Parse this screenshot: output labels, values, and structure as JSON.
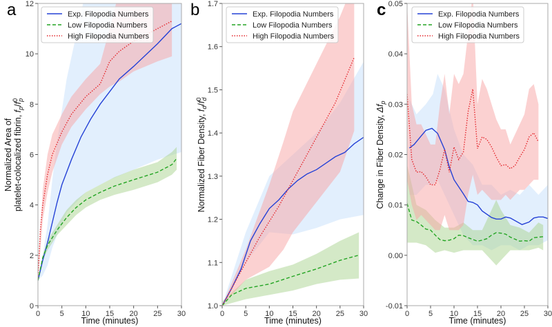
{
  "colors": {
    "exp": "#2441d6",
    "low": "#22a422",
    "high": "#e4262b",
    "exp_band": "#cfe4fb",
    "low_band": "#a9d48f",
    "high_band": "#f7a4a4"
  },
  "legend": [
    "Exp. Filopodia Numbers",
    "Low Filopodia Numbers",
    "High Filopodia Numbers"
  ],
  "chart_data": [
    {
      "type": "line",
      "panel_label": "a",
      "xlabel": "Time (minutes)",
      "ylabel_line1": "Normalized Area of",
      "ylabel_line2": "platelet-colocalized fibrin, ",
      "ylabel_math": [
        "f",
        "p",
        "/",
        "f",
        "p",
        "0"
      ],
      "xlim": [
        0,
        30
      ],
      "ylim": [
        0,
        12
      ],
      "xticks": [
        0,
        5,
        10,
        15,
        20,
        25,
        30
      ],
      "yticks": [
        0,
        2,
        4,
        6,
        8,
        10,
        12
      ],
      "ytick_labels": [
        "0",
        "2",
        "4",
        "6",
        "8",
        "10",
        "12"
      ],
      "legend_position": "top-left",
      "series": [
        {
          "name": "Exp. Filopodia Numbers",
          "key": "exp",
          "style": "solid",
          "x": [
            0,
            1,
            2,
            3,
            4,
            5,
            7,
            9,
            11,
            13,
            15,
            17,
            20,
            25,
            28,
            30
          ],
          "y": [
            1,
            1.8,
            2.5,
            3.3,
            4.1,
            4.8,
            5.8,
            6.7,
            7.4,
            8.0,
            8.5,
            9.0,
            9.5,
            10.4,
            11.0,
            11.2
          ],
          "band": {
            "x": [
              0,
              1,
              2,
              3,
              4,
              6,
              10,
              15,
              20,
              25,
              30
            ],
            "lower": [
              1,
              1.2,
              1.6,
              2.3,
              2.8,
              3.7,
              4.5,
              5.0,
              5.4,
              5.8,
              6.1
            ],
            "upper": [
              1.1,
              2,
              3.2,
              5,
              6.5,
              9,
              12.5,
              14,
              14,
              14,
              14
            ]
          }
        },
        {
          "name": "Low Filopodia Numbers",
          "key": "low",
          "style": "dashed",
          "x": [
            0,
            1,
            2,
            4,
            6,
            8,
            10,
            13,
            16,
            20,
            25,
            28,
            29
          ],
          "y": [
            1,
            1.9,
            2.4,
            3.0,
            3.5,
            3.9,
            4.2,
            4.5,
            4.75,
            5.0,
            5.3,
            5.6,
            5.85
          ],
          "band": {
            "x": [
              0,
              1,
              2,
              4,
              6,
              8,
              10,
              13,
              16,
              20,
              25,
              28,
              29
            ],
            "lower": [
              1,
              1.8,
              2.2,
              2.8,
              3.2,
              3.6,
              3.9,
              4.2,
              4.4,
              4.6,
              4.9,
              5.2,
              5.4
            ],
            "upper": [
              1.1,
              2.0,
              2.6,
              3.2,
              3.8,
              4.2,
              4.5,
              4.8,
              5.1,
              5.4,
              5.7,
              6.1,
              6.3
            ]
          }
        },
        {
          "name": "High Filopodia Numbers",
          "key": "high",
          "style": "dotted",
          "x": [
            0,
            0.5,
            1,
            2,
            3,
            5,
            7,
            10,
            13,
            15,
            17,
            20,
            25,
            28
          ],
          "y": [
            1.1,
            3,
            4,
            5.2,
            6,
            6.9,
            7.6,
            8.3,
            8.8,
            9.7,
            10.1,
            10.5,
            11.0,
            11.3
          ],
          "band": {
            "x": [
              0,
              1,
              2,
              3,
              5,
              7,
              10,
              13,
              15,
              17,
              20,
              25,
              28
            ],
            "lower": [
              1,
              3.4,
              4.5,
              5.3,
              6.4,
              7.1,
              7.8,
              8.4,
              8.7,
              8.9,
              9.3,
              9.7,
              9.9
            ],
            "upper": [
              1.2,
              4.6,
              6,
              6.8,
              7.6,
              8.3,
              9.0,
              9.6,
              11,
              12.5,
              13,
              13,
              13
            ]
          }
        }
      ]
    },
    {
      "type": "line",
      "panel_label": "b",
      "xlabel": "Time (minutes)",
      "ylabel_line1": "",
      "ylabel_line2": "Normalized Fiber Density, ",
      "ylabel_math": [
        "f",
        "d",
        "/",
        "f",
        "d",
        "0"
      ],
      "xlim": [
        0,
        30
      ],
      "ylim": [
        1.0,
        1.7
      ],
      "xticks": [
        0,
        5,
        10,
        15,
        20,
        25,
        30
      ],
      "yticks": [
        1.0,
        1.1,
        1.2,
        1.3,
        1.4,
        1.5,
        1.6,
        1.7
      ],
      "ytick_labels": [
        "1.0",
        "1.1",
        "1.2",
        "1.3",
        "1.4",
        "1.5",
        "1.6",
        "1.7"
      ],
      "legend_position": "top-left",
      "series": [
        {
          "name": "Exp. Filopodia Numbers",
          "key": "exp",
          "style": "solid",
          "x": [
            0,
            2,
            4,
            6,
            8,
            10,
            12,
            14,
            16,
            18,
            20,
            22,
            24,
            26,
            28,
            30
          ],
          "y": [
            1,
            1.04,
            1.085,
            1.15,
            1.19,
            1.225,
            1.245,
            1.27,
            1.29,
            1.305,
            1.315,
            1.33,
            1.345,
            1.355,
            1.375,
            1.39
          ],
          "band": {
            "x": [
              0,
              5,
              10,
              15,
              20,
              25,
              30
            ],
            "lower": [
              1,
              1.1,
              1.17,
              1.165,
              1.18,
              1.2,
              1.21
            ],
            "upper": [
              1,
              1.17,
              1.3,
              1.35,
              1.4,
              1.47,
              1.565
            ]
          }
        },
        {
          "name": "Low Filopodia Numbers",
          "key": "low",
          "style": "dashed",
          "x": [
            0,
            2,
            5,
            10,
            15,
            20,
            25,
            29
          ],
          "y": [
            1,
            1.025,
            1.04,
            1.05,
            1.068,
            1.085,
            1.105,
            1.117
          ],
          "band": {
            "x": [
              0,
              5,
              10,
              15,
              20,
              25,
              29
            ],
            "lower": [
              1,
              1.015,
              1.025,
              1.035,
              1.05,
              1.06,
              1.063
            ],
            "upper": [
              1.01,
              1.06,
              1.08,
              1.095,
              1.12,
              1.15,
              1.17
            ]
          }
        },
        {
          "name": "High Filopodia Numbers",
          "key": "high",
          "style": "dotted",
          "x": [
            0,
            4,
            8,
            12,
            16,
            20,
            24,
            28
          ],
          "y": [
            1,
            1.08,
            1.16,
            1.23,
            1.31,
            1.39,
            1.47,
            1.575
          ],
          "band": {
            "x": [
              0,
              5,
              10,
              13,
              15,
              20,
              25,
              28
            ],
            "lower": [
              1,
              1.06,
              1.09,
              1.13,
              1.17,
              1.24,
              1.31,
              1.405
            ],
            "upper": [
              1,
              1.13,
              1.28,
              1.38,
              1.45,
              1.56,
              1.67,
              1.75
            ]
          }
        }
      ]
    },
    {
      "type": "line",
      "panel_label": "c",
      "xlabel": "Time (minutes)",
      "ylabel_line1": "",
      "ylabel_line2": "Change in Fiber Density, ",
      "ylabel_math": [
        "Δf",
        "p",
        "",
        "",
        "",
        ""
      ],
      "xlim": [
        0,
        30
      ],
      "ylim": [
        -0.01,
        0.05
      ],
      "xticks": [
        0,
        5,
        10,
        15,
        20,
        25,
        30
      ],
      "yticks": [
        -0.01,
        0.0,
        0.01,
        0.02,
        0.03,
        0.04,
        0.05
      ],
      "ytick_labels": [
        "-0.01",
        "0.00",
        "0.01",
        "0.02",
        "0.03",
        "0.04",
        "0.05"
      ],
      "legend_position": "top-left",
      "series": [
        {
          "name": "Exp. Filopodia Numbers",
          "key": "exp",
          "style": "solid",
          "x": [
            0.5,
            1.5,
            3,
            4,
            5.3,
            6.5,
            8,
            9,
            10,
            12,
            13,
            14,
            15,
            16,
            18,
            19,
            20,
            21,
            22,
            24.5,
            26,
            27,
            28,
            29,
            30
          ],
          "y": [
            0.0213,
            0.022,
            0.0237,
            0.0248,
            0.0252,
            0.0242,
            0.021,
            0.0175,
            0.015,
            0.0122,
            0.0107,
            0.0105,
            0.01,
            0.0088,
            0.0075,
            0.0072,
            0.0072,
            0.0076,
            0.0074,
            0.0061,
            0.0066,
            0.0074,
            0.0076,
            0.0076,
            0.0073
          ],
          "band": {
            "x": [
              0.5,
              2,
              4,
              5.5,
              6.5,
              8,
              10,
              12,
              14,
              16,
              18,
              20,
              22,
              24,
              26,
              28,
              30
            ],
            "lower": [
              0.012,
              0.012,
              0.014,
              0.014,
              0.015,
              0.012,
              0.008,
              0.004,
              0.002,
              0.002,
              0.001,
              0.002,
              0.002,
              0.001,
              0.002,
              0.002,
              0.003
            ],
            "upper": [
              0.031,
              0.028,
              0.03,
              0.032,
              0.036,
              0.033,
              0.025,
              0.02,
              0.018,
              0.014,
              0.014,
              0.012,
              0.013,
              0.012,
              0.014,
              0.012,
              0.014
            ]
          }
        },
        {
          "name": "Low Filopodia Numbers",
          "key": "low",
          "style": "dashed",
          "x": [
            0,
            1,
            2,
            3,
            4,
            5,
            6,
            7,
            8,
            9,
            10,
            11,
            12,
            13,
            15,
            16,
            17,
            18,
            19,
            20,
            21,
            22,
            24,
            25,
            26,
            27,
            29
          ],
          "y": [
            0.0103,
            0.007,
            0.0067,
            0.006,
            0.0052,
            0.005,
            0.004,
            0.0031,
            0.0029,
            0.003,
            0.0033,
            0.004,
            0.0039,
            0.0035,
            0.0028,
            0.003,
            0.0033,
            0.004,
            0.0045,
            0.0044,
            0.0042,
            0.0036,
            0.0028,
            0.0029,
            0.0028,
            0.0035,
            0.0037
          ],
          "band": {
            "x": [
              0,
              2,
              4,
              6,
              8,
              10,
              12,
              14,
              16,
              18,
              19,
              20,
              22,
              24,
              26,
              28,
              29
            ],
            "lower": [
              0.0025,
              0.0025,
              0.002,
              0.0005,
              0.001,
              0.0005,
              0.001,
              0.001,
              0.001,
              -0.001,
              -0.002,
              -0.001,
              0.001,
              0.001,
              0.001,
              0.0015,
              0.001
            ],
            "upper": [
              0.018,
              0.01,
              0.009,
              0.007,
              0.0055,
              0.0055,
              0.0065,
              0.005,
              0.005,
              0.009,
              0.011,
              0.009,
              0.006,
              0.0055,
              0.0045,
              0.0065,
              0.006
            ]
          }
        },
        {
          "name": "High Filopodia Numbers",
          "key": "high",
          "style": "dotted",
          "x": [
            0,
            1,
            2,
            3,
            4,
            5,
            6,
            7,
            8,
            9,
            10,
            11,
            12,
            13,
            14,
            15,
            16,
            17,
            18,
            19,
            20,
            21,
            22,
            23,
            24,
            25,
            26,
            27,
            28
          ],
          "y": [
            0.032,
            0.019,
            0.0165,
            0.0166,
            0.0156,
            0.014,
            0.014,
            0.017,
            0.021,
            0.0165,
            0.0215,
            0.019,
            0.0205,
            0.0285,
            0.033,
            0.0212,
            0.0235,
            0.023,
            0.0215,
            0.0195,
            0.0178,
            0.018,
            0.0172,
            0.0178,
            0.0195,
            0.021,
            0.0235,
            0.0243,
            0.0225
          ],
          "band": {
            "x": [
              0,
              1,
              2,
              3,
              4,
              5,
              6,
              7,
              8,
              9,
              10,
              11,
              12,
              13,
              14,
              15,
              16,
              17,
              18,
              19,
              20,
              21,
              22,
              23,
              24,
              25,
              26,
              27,
              28
            ],
            "lower": [
              0.015,
              0.01,
              0.007,
              0.008,
              0.007,
              0.006,
              0.005,
              0.005,
              0.008,
              0.005,
              0.005,
              0.005,
              0.006,
              0.012,
              0.016,
              0.012,
              0.013,
              0.012,
              0.011,
              0.011,
              0.011,
              0.012,
              0.011,
              0.012,
              0.013,
              0.013,
              0.014,
              0.015,
              0.015
            ],
            "upper": [
              0.05,
              0.03,
              0.026,
              0.026,
              0.024,
              0.022,
              0.022,
              0.03,
              0.036,
              0.028,
              0.036,
              0.034,
              0.036,
              0.044,
              0.052,
              0.03,
              0.035,
              0.033,
              0.03,
              0.027,
              0.025,
              0.025,
              0.022,
              0.024,
              0.026,
              0.028,
              0.033,
              0.034,
              0.03
            ]
          }
        }
      ]
    }
  ]
}
